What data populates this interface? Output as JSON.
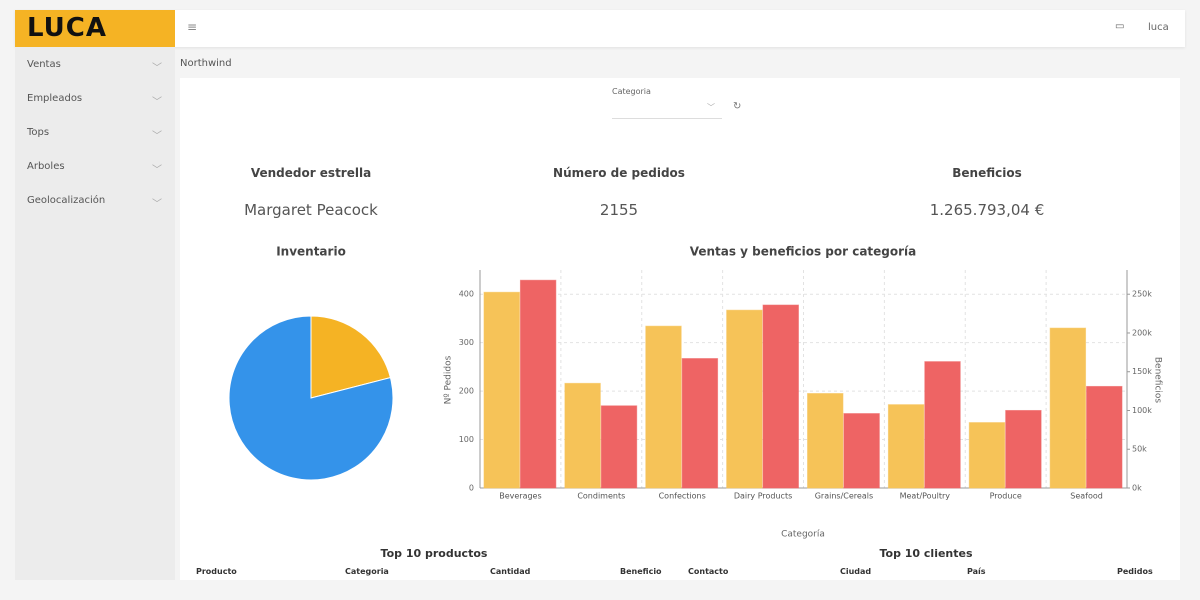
{
  "header": {
    "logo": "LUCA",
    "user": "luca"
  },
  "sidebar": {
    "items": [
      "Ventas",
      "Empleados",
      "Tops",
      "Arboles",
      "Geolocalización"
    ]
  },
  "breadcrumb": "Northwind",
  "filter": {
    "label": "Categoria"
  },
  "kpis": [
    {
      "title": "Vendedor estrella",
      "value": "Margaret Peacock"
    },
    {
      "title": "Número de pedidos",
      "value": "2155"
    },
    {
      "title": "Beneficios",
      "value": "1.265.793,04 €"
    }
  ],
  "chart_data": [
    {
      "type": "pie",
      "title": "Inventario",
      "values": [
        21,
        79
      ],
      "colors": [
        "#f5b324",
        "#3493ea"
      ]
    },
    {
      "type": "bar",
      "title": "Ventas y beneficios por categoría",
      "xlabel": "Categoría",
      "ylabel": "Nº Pedidos",
      "y2label": "Beneficios",
      "categories": [
        "Beverages",
        "Condiments",
        "Confections",
        "Dairy Products",
        "Grains/Cereals",
        "Meat/Poultry",
        "Produce",
        "Seafood"
      ],
      "series": [
        {
          "color": "#f6c358",
          "values": [
            404,
            216,
            334,
            367,
            195,
            172,
            135,
            330
          ]
        },
        {
          "color": "#ee6464",
          "axis": "y2",
          "values": [
            268000,
            106000,
            167000,
            236000,
            96000,
            163000,
            100000,
            131000
          ]
        }
      ],
      "ylim": [
        0,
        450
      ],
      "yticks": [
        0,
        100,
        200,
        300,
        400
      ],
      "y2lim": [
        0,
        281250
      ],
      "y2ticks": [
        {
          "value": 0,
          "label": "0k"
        },
        {
          "value": 50000,
          "label": "50k"
        },
        {
          "value": 100000,
          "label": "100k"
        },
        {
          "value": 150000,
          "label": "150k"
        },
        {
          "value": 200000,
          "label": "200k"
        },
        {
          "value": 250000,
          "label": "250k"
        }
      ],
      "grid": true
    }
  ],
  "tables": [
    {
      "title": "Top 10 productos",
      "columns": [
        "Producto",
        "Categoria",
        "Cantidad",
        "Beneficio"
      ]
    },
    {
      "title": "Top 10 clientes",
      "columns": [
        "Contacto",
        "Ciudad",
        "País",
        "Pedidos"
      ]
    }
  ]
}
